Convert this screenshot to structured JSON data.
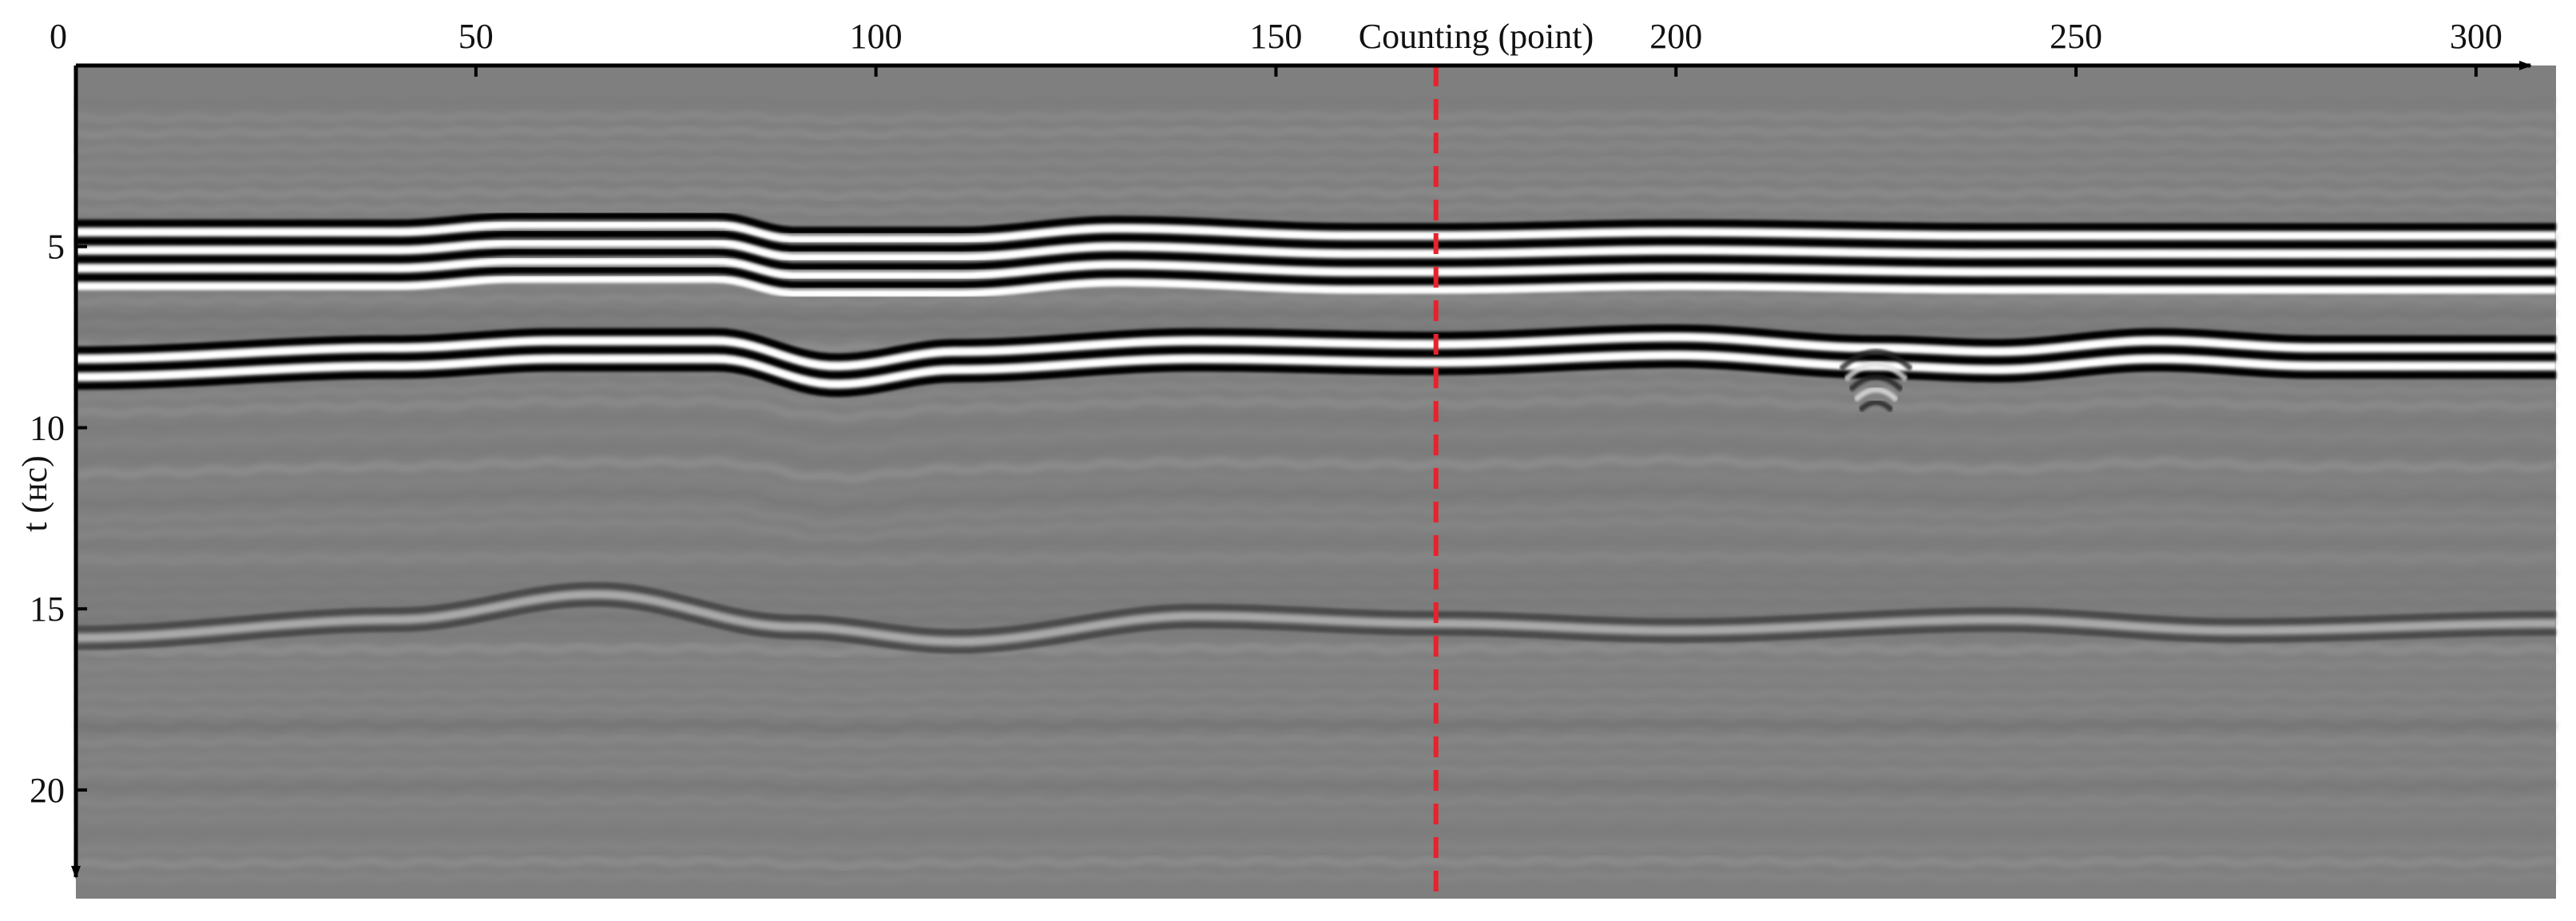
{
  "chart_data": {
    "type": "heatmap",
    "title": "",
    "xlabel": "Counting (point)",
    "ylabel": "t (нс)",
    "xlim": [
      0,
      310
    ],
    "ylim": [
      0,
      23
    ],
    "y_inverted": true,
    "x_ticks": [
      "0",
      "50",
      "100",
      "150",
      "200",
      "250",
      "300"
    ],
    "y_ticks": [
      "5",
      "10",
      "15",
      "20"
    ],
    "colormap": "grayscale",
    "grid": false,
    "legend": "none",
    "reference_line": {
      "x": 170,
      "style": "dashed",
      "color": "#e8222c"
    },
    "reflections": [
      {
        "description": "surface reflection",
        "x": [
          0,
          40,
          55,
          80,
          90,
          110,
          130,
          160,
          170,
          200,
          240,
          280,
          310
        ],
        "t": [
          4.6,
          4.6,
          4.4,
          4.4,
          4.8,
          4.8,
          4.5,
          4.7,
          4.7,
          4.6,
          4.7,
          4.7,
          4.7
        ]
      },
      {
        "description": "second layer reflection",
        "x": [
          0,
          40,
          60,
          80,
          95,
          110,
          140,
          170,
          200,
          225,
          240,
          260,
          280,
          310
        ],
        "t": [
          8.1,
          7.8,
          7.6,
          7.6,
          8.3,
          7.9,
          7.6,
          7.7,
          7.5,
          7.8,
          7.9,
          7.6,
          7.8,
          7.8
        ]
      },
      {
        "description": "deep reflector",
        "x": [
          0,
          40,
          65,
          90,
          110,
          140,
          170,
          200,
          240,
          270,
          310
        ],
        "t": [
          15.8,
          15.3,
          14.6,
          15.5,
          15.9,
          15.2,
          15.4,
          15.6,
          15.3,
          15.6,
          15.4
        ]
      }
    ],
    "colors": {
      "reference_line": "#e8222c",
      "background": "#7f7f7f",
      "axis": "#000000"
    }
  }
}
